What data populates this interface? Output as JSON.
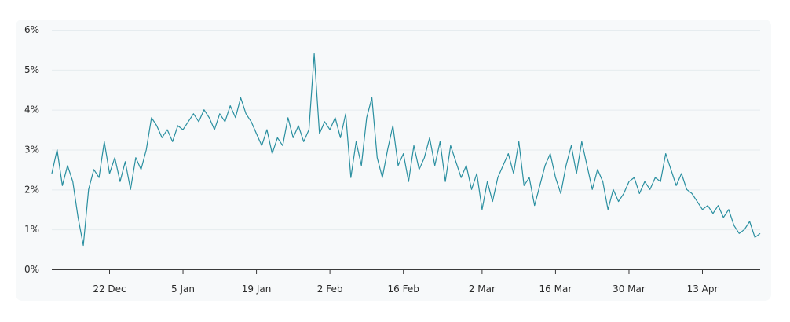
{
  "chart_data": {
    "type": "line",
    "title": "",
    "xlabel": "",
    "ylabel": "",
    "x_range": [
      "2023-12-11",
      "2024-04-24"
    ],
    "ylim": [
      0,
      6
    ],
    "y_ticks": [
      "0%",
      "1%",
      "2%",
      "3%",
      "4%",
      "5%",
      "6%"
    ],
    "x_ticks": [
      {
        "date": "2023-12-22",
        "label": "22 Dec"
      },
      {
        "date": "2024-01-05",
        "label": "5 Jan"
      },
      {
        "date": "2024-01-19",
        "label": "19 Jan"
      },
      {
        "date": "2024-02-02",
        "label": "2 Feb"
      },
      {
        "date": "2024-02-16",
        "label": "16 Feb"
      },
      {
        "date": "2024-03-02",
        "label": "2 Mar"
      },
      {
        "date": "2024-03-16",
        "label": "16 Mar"
      },
      {
        "date": "2024-03-30",
        "label": "30 Mar"
      },
      {
        "date": "2024-04-13",
        "label": "13 Apr"
      }
    ],
    "grid": true,
    "legend": "none",
    "series": [
      {
        "color": "#2a8fa0",
        "points": [
          [
            "2023-12-11",
            2.4
          ],
          [
            "2023-12-12",
            3.0
          ],
          [
            "2023-12-13",
            2.1
          ],
          [
            "2023-12-14",
            2.6
          ],
          [
            "2023-12-15",
            2.2
          ],
          [
            "2023-12-16",
            1.3
          ],
          [
            "2023-12-17",
            0.6
          ],
          [
            "2023-12-18",
            2.0
          ],
          [
            "2023-12-19",
            2.5
          ],
          [
            "2023-12-20",
            2.3
          ],
          [
            "2023-12-21",
            3.2
          ],
          [
            "2023-12-22",
            2.4
          ],
          [
            "2023-12-23",
            2.8
          ],
          [
            "2023-12-24",
            2.2
          ],
          [
            "2023-12-25",
            2.7
          ],
          [
            "2023-12-26",
            2.0
          ],
          [
            "2023-12-27",
            2.8
          ],
          [
            "2023-12-28",
            2.5
          ],
          [
            "2023-12-29",
            3.0
          ],
          [
            "2023-12-30",
            3.8
          ],
          [
            "2023-12-31",
            3.6
          ],
          [
            "2024-01-01",
            3.3
          ],
          [
            "2024-01-02",
            3.5
          ],
          [
            "2024-01-03",
            3.2
          ],
          [
            "2024-01-04",
            3.6
          ],
          [
            "2024-01-05",
            3.5
          ],
          [
            "2024-01-06",
            3.7
          ],
          [
            "2024-01-07",
            3.9
          ],
          [
            "2024-01-08",
            3.7
          ],
          [
            "2024-01-09",
            4.0
          ],
          [
            "2024-01-10",
            3.8
          ],
          [
            "2024-01-11",
            3.5
          ],
          [
            "2024-01-12",
            3.9
          ],
          [
            "2024-01-13",
            3.7
          ],
          [
            "2024-01-14",
            4.1
          ],
          [
            "2024-01-15",
            3.8
          ],
          [
            "2024-01-16",
            4.3
          ],
          [
            "2024-01-17",
            3.9
          ],
          [
            "2024-01-18",
            3.7
          ],
          [
            "2024-01-19",
            3.4
          ],
          [
            "2024-01-20",
            3.1
          ],
          [
            "2024-01-21",
            3.5
          ],
          [
            "2024-01-22",
            2.9
          ],
          [
            "2024-01-23",
            3.3
          ],
          [
            "2024-01-24",
            3.1
          ],
          [
            "2024-01-25",
            3.8
          ],
          [
            "2024-01-26",
            3.3
          ],
          [
            "2024-01-27",
            3.6
          ],
          [
            "2024-01-28",
            3.2
          ],
          [
            "2024-01-29",
            3.5
          ],
          [
            "2024-01-30",
            5.4
          ],
          [
            "2024-01-31",
            3.4
          ],
          [
            "2024-02-01",
            3.7
          ],
          [
            "2024-02-02",
            3.5
          ],
          [
            "2024-02-03",
            3.8
          ],
          [
            "2024-02-04",
            3.3
          ],
          [
            "2024-02-05",
            3.9
          ],
          [
            "2024-02-06",
            2.3
          ],
          [
            "2024-02-07",
            3.2
          ],
          [
            "2024-02-08",
            2.6
          ],
          [
            "2024-02-09",
            3.8
          ],
          [
            "2024-02-10",
            4.3
          ],
          [
            "2024-02-11",
            2.8
          ],
          [
            "2024-02-12",
            2.3
          ],
          [
            "2024-02-13",
            3.0
          ],
          [
            "2024-02-14",
            3.6
          ],
          [
            "2024-02-15",
            2.6
          ],
          [
            "2024-02-16",
            2.9
          ],
          [
            "2024-02-17",
            2.2
          ],
          [
            "2024-02-18",
            3.1
          ],
          [
            "2024-02-19",
            2.5
          ],
          [
            "2024-02-20",
            2.8
          ],
          [
            "2024-02-21",
            3.3
          ],
          [
            "2024-02-22",
            2.6
          ],
          [
            "2024-02-23",
            3.2
          ],
          [
            "2024-02-24",
            2.2
          ],
          [
            "2024-02-25",
            3.1
          ],
          [
            "2024-02-26",
            2.7
          ],
          [
            "2024-02-27",
            2.3
          ],
          [
            "2024-02-28",
            2.6
          ],
          [
            "2024-02-29",
            2.0
          ],
          [
            "2024-03-01",
            2.4
          ],
          [
            "2024-03-02",
            1.5
          ],
          [
            "2024-03-03",
            2.2
          ],
          [
            "2024-03-04",
            1.7
          ],
          [
            "2024-03-05",
            2.3
          ],
          [
            "2024-03-06",
            2.6
          ],
          [
            "2024-03-07",
            2.9
          ],
          [
            "2024-03-08",
            2.4
          ],
          [
            "2024-03-09",
            3.2
          ],
          [
            "2024-03-10",
            2.1
          ],
          [
            "2024-03-11",
            2.3
          ],
          [
            "2024-03-12",
            1.6
          ],
          [
            "2024-03-13",
            2.1
          ],
          [
            "2024-03-14",
            2.6
          ],
          [
            "2024-03-15",
            2.9
          ],
          [
            "2024-03-16",
            2.3
          ],
          [
            "2024-03-17",
            1.9
          ],
          [
            "2024-03-18",
            2.6
          ],
          [
            "2024-03-19",
            3.1
          ],
          [
            "2024-03-20",
            2.4
          ],
          [
            "2024-03-21",
            3.2
          ],
          [
            "2024-03-22",
            2.6
          ],
          [
            "2024-03-23",
            2.0
          ],
          [
            "2024-03-24",
            2.5
          ],
          [
            "2024-03-25",
            2.2
          ],
          [
            "2024-03-26",
            1.5
          ],
          [
            "2024-03-27",
            2.0
          ],
          [
            "2024-03-28",
            1.7
          ],
          [
            "2024-03-29",
            1.9
          ],
          [
            "2024-03-30",
            2.2
          ],
          [
            "2024-03-31",
            2.3
          ],
          [
            "2024-04-01",
            1.9
          ],
          [
            "2024-04-02",
            2.2
          ],
          [
            "2024-04-03",
            2.0
          ],
          [
            "2024-04-04",
            2.3
          ],
          [
            "2024-04-05",
            2.2
          ],
          [
            "2024-04-06",
            2.9
          ],
          [
            "2024-04-07",
            2.5
          ],
          [
            "2024-04-08",
            2.1
          ],
          [
            "2024-04-09",
            2.4
          ],
          [
            "2024-04-10",
            2.0
          ],
          [
            "2024-04-11",
            1.9
          ],
          [
            "2024-04-12",
            1.7
          ],
          [
            "2024-04-13",
            1.5
          ],
          [
            "2024-04-14",
            1.6
          ],
          [
            "2024-04-15",
            1.4
          ],
          [
            "2024-04-16",
            1.6
          ],
          [
            "2024-04-17",
            1.3
          ],
          [
            "2024-04-18",
            1.5
          ],
          [
            "2024-04-19",
            1.1
          ],
          [
            "2024-04-20",
            0.9
          ],
          [
            "2024-04-21",
            1.0
          ],
          [
            "2024-04-22",
            1.2
          ],
          [
            "2024-04-23",
            0.8
          ],
          [
            "2024-04-24",
            0.9
          ]
        ]
      }
    ]
  }
}
